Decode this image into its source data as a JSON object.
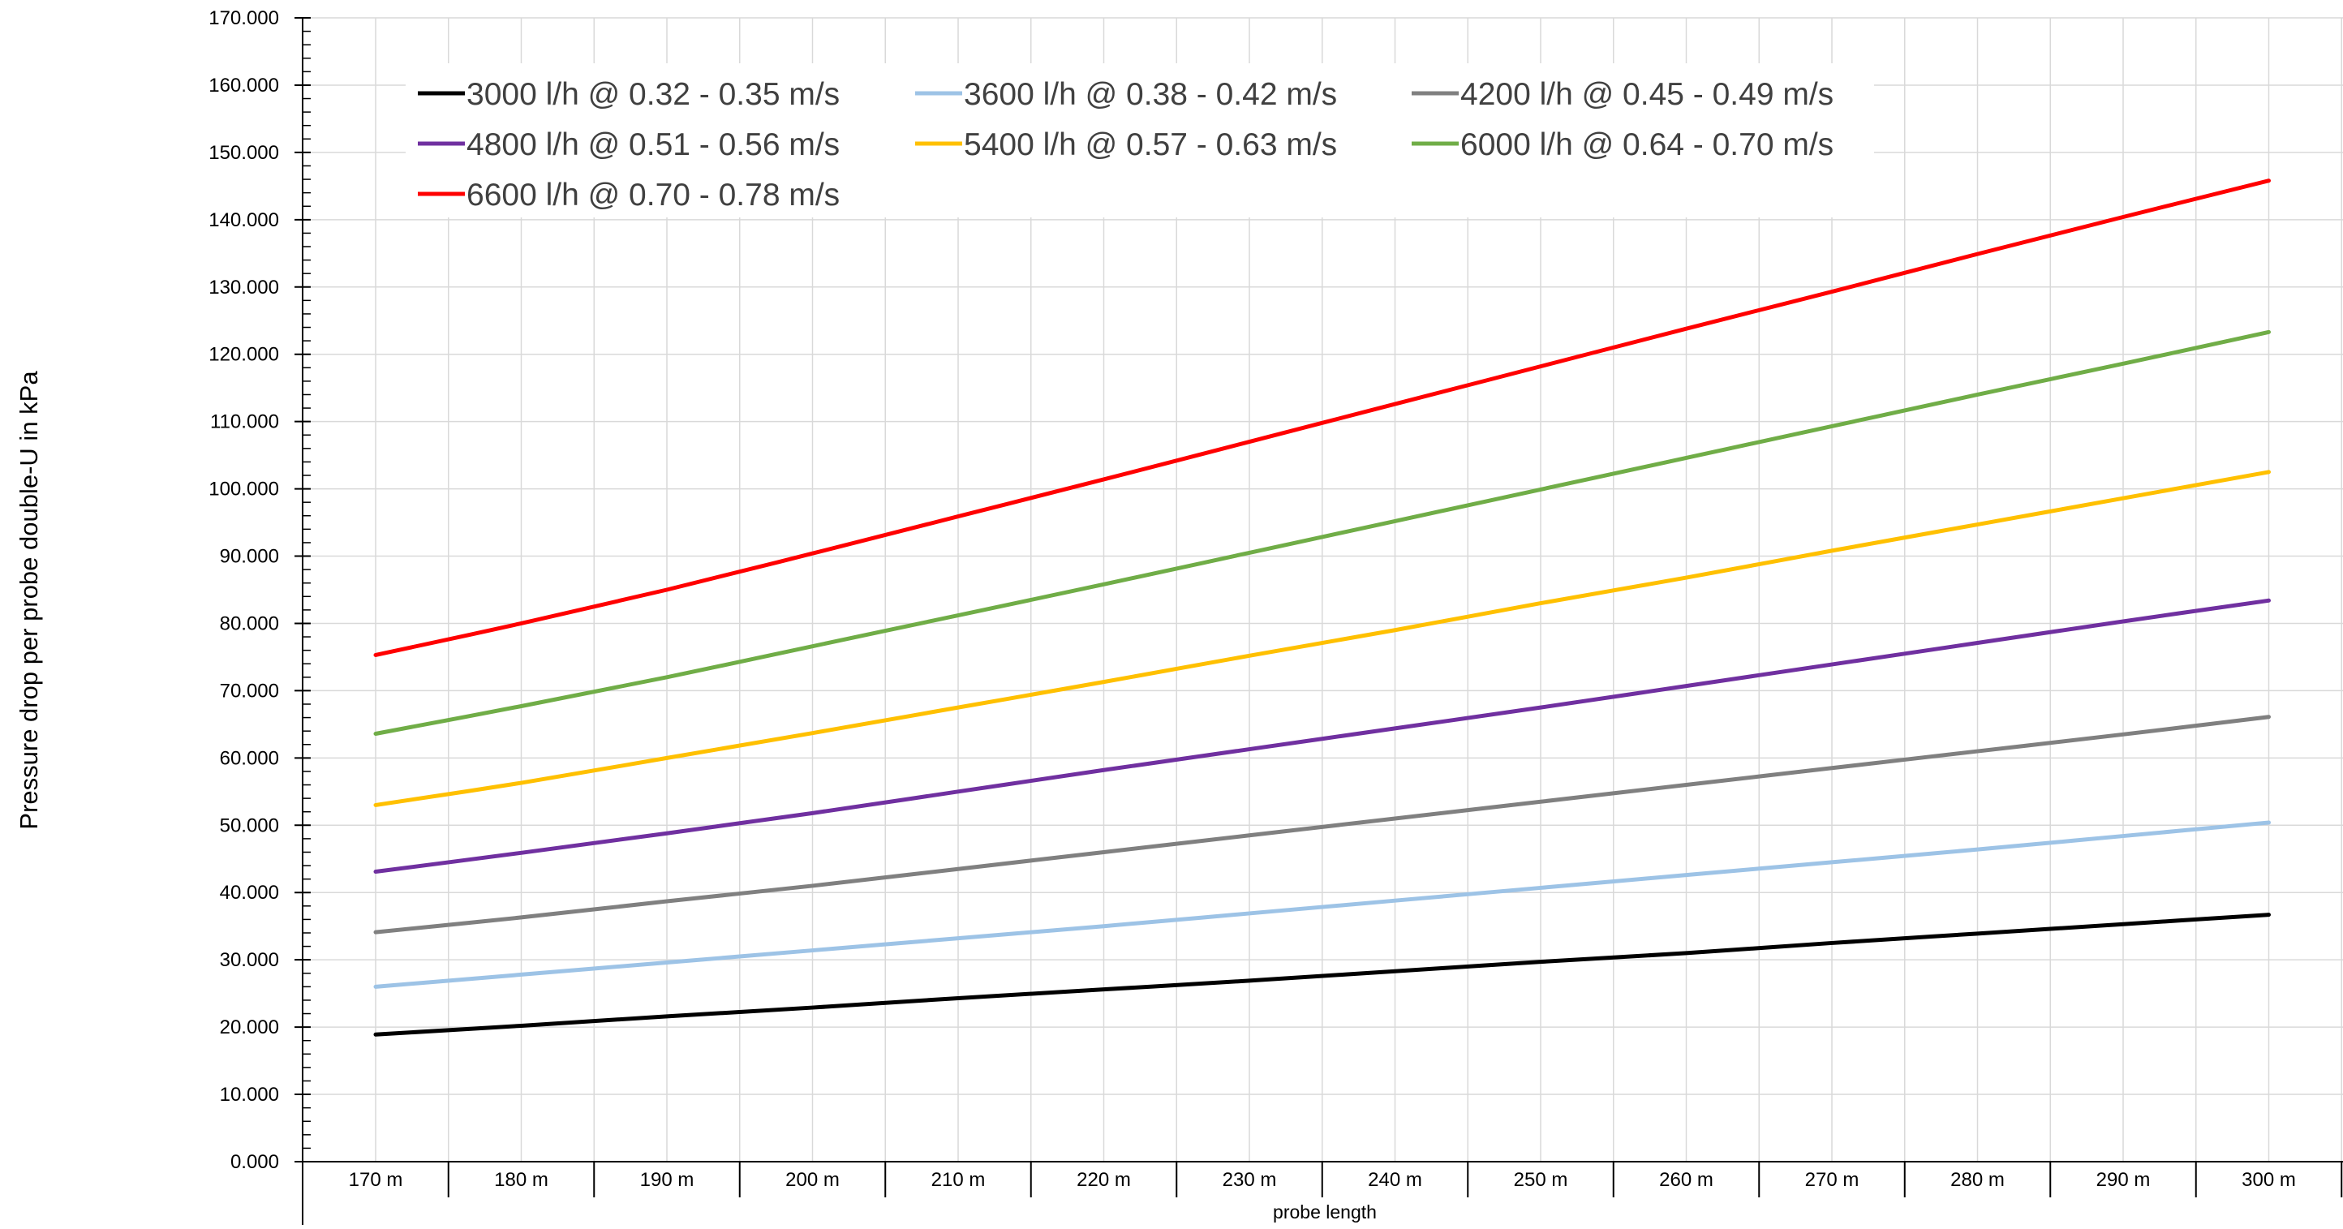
{
  "chart_data": {
    "type": "line",
    "title": "",
    "xlabel": "probe length",
    "ylabel": "Pressure drop per probe double-U in kPa",
    "categories": [
      "170 m",
      "180 m",
      "190 m",
      "200 m",
      "210 m",
      "220 m",
      "230 m",
      "240 m",
      "250 m",
      "260 m",
      "270 m",
      "280 m",
      "290 m",
      "300 m"
    ],
    "y_ticks": [
      "0.000",
      "10.000",
      "20.000",
      "30.000",
      "40.000",
      "50.000",
      "60.000",
      "70.000",
      "80.000",
      "90.000",
      "100.000",
      "110.000",
      "120.000",
      "130.000",
      "140.000",
      "150.000",
      "160.000",
      "170.000"
    ],
    "ylim": [
      0,
      170
    ],
    "y_major_step": 10,
    "y_minor_step": 2,
    "grid": true,
    "legend_position": "top-left (inside plot)",
    "series": [
      {
        "name": "3000 l/h @ 0.32 - 0.35 m/s",
        "color": "#000000",
        "values": [
          18.9,
          20.2,
          21.6,
          22.9,
          24.3,
          25.6,
          26.9,
          28.3,
          29.7,
          31.0,
          32.5,
          33.9,
          35.3,
          36.7
        ]
      },
      {
        "name": "3600 l/h @ 0.38 - 0.42 m/s",
        "color": "#9DC3E6",
        "values": [
          26.0,
          27.8,
          29.6,
          31.4,
          33.2,
          35.0,
          36.9,
          38.8,
          40.7,
          42.6,
          44.5,
          46.4,
          48.4,
          50.4
        ]
      },
      {
        "name": "4200 l/h @ 0.45 - 0.49 m/s",
        "color": "#808080",
        "values": [
          34.1,
          36.3,
          38.7,
          41.0,
          43.5,
          46.0,
          48.5,
          51.0,
          53.5,
          56.0,
          58.5,
          61.0,
          63.5,
          66.1
        ]
      },
      {
        "name": "4800 l/h @ 0.51 - 0.56 m/s",
        "color": "#7030A0",
        "values": [
          43.1,
          45.9,
          48.8,
          51.8,
          55.0,
          58.2,
          61.3,
          64.4,
          67.5,
          70.7,
          73.9,
          77.1,
          80.3,
          83.4
        ]
      },
      {
        "name": "5400 l/h @ 0.57 - 0.63 m/s",
        "color": "#FFC000",
        "values": [
          53.0,
          56.3,
          60.0,
          63.7,
          67.5,
          71.3,
          75.2,
          79.0,
          83.0,
          86.8,
          90.8,
          94.7,
          98.6,
          102.5
        ]
      },
      {
        "name": "6000 l/h @ 0.64 - 0.70 m/s",
        "color": "#70AD47",
        "values": [
          63.6,
          67.7,
          72.0,
          76.6,
          81.2,
          85.8,
          90.5,
          95.2,
          99.9,
          104.6,
          109.3,
          114.0,
          118.6,
          123.3
        ]
      },
      {
        "name": "6600 l/h @ 0.70 - 0.78 m/s",
        "color": "#FF0000",
        "values": [
          75.3,
          80.0,
          85.0,
          90.4,
          95.9,
          101.4,
          107.0,
          112.6,
          118.2,
          123.8,
          129.3,
          134.9,
          140.4,
          145.8
        ]
      }
    ]
  }
}
